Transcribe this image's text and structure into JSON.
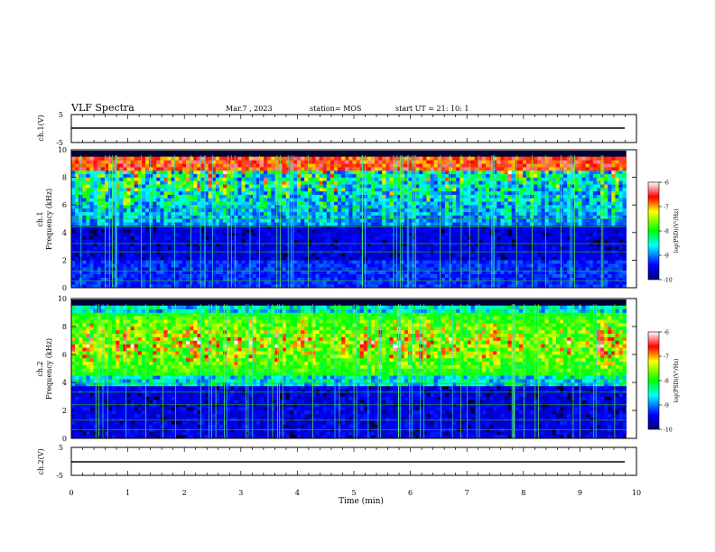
{
  "header": {
    "title": "VLF Spectra",
    "date": "Mar.7  , 2023",
    "station": "station= MOS",
    "start": "start  UT  =    21: 10: 1"
  },
  "chart_data": [
    {
      "type": "line",
      "panel": "ch1-waveform",
      "ylabel": "ch.1(V)",
      "ylim": [
        -5,
        5
      ],
      "yticks": [
        "5",
        "-5"
      ],
      "xlim": [
        0,
        10
      ],
      "baseline_value": 0
    },
    {
      "type": "heatmap",
      "panel": "ch1-spectrogram",
      "ylabel": "ch.1\nFrequency (kHz)",
      "ylim": [
        0,
        10
      ],
      "yticks": [
        "0",
        "2",
        "4",
        "6",
        "8",
        "10"
      ],
      "xlim": [
        0,
        9.82
      ],
      "band_top_khz": 9.0,
      "colorbar": {
        "label": "log(PSD)(V²/Hz)",
        "ticks": [
          "-6",
          "-7",
          "-8",
          "-9",
          "-10"
        ],
        "range": [
          -10,
          -6
        ]
      }
    },
    {
      "type": "heatmap",
      "panel": "ch2-spectrogram",
      "ylabel": "ch.2\nFrequency (kHz)",
      "ylim": [
        0,
        10
      ],
      "yticks": [
        "0",
        "2",
        "4",
        "6",
        "8",
        "10"
      ],
      "xlim": [
        0,
        9.82
      ],
      "band_center_khz": 6.8,
      "colorbar": {
        "label": "log(PSD)(V²/Hz)",
        "ticks": [
          "-6",
          "-7",
          "-8",
          "-9",
          "-10"
        ],
        "range": [
          -10,
          -6
        ]
      }
    },
    {
      "type": "line",
      "panel": "ch2-waveform",
      "ylabel": "ch.2(V)",
      "ylim": [
        -5,
        5
      ],
      "yticks": [
        "5",
        "-5"
      ],
      "xlim": [
        0,
        10
      ],
      "baseline_value": 0
    }
  ],
  "xaxis": {
    "label": "Time  (min)",
    "ticks": [
      "0",
      "1",
      "2",
      "3",
      "4",
      "5",
      "6",
      "7",
      "8",
      "9",
      "10"
    ],
    "range": [
      0,
      10
    ]
  }
}
